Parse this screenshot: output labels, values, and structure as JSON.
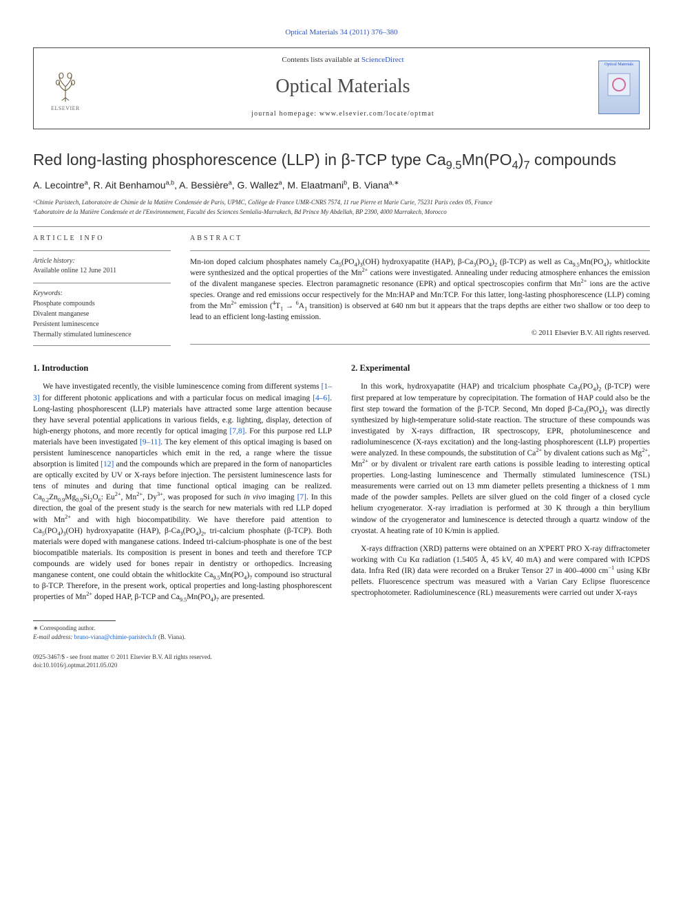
{
  "citation": "Optical Materials 34 (2011) 376–380",
  "header": {
    "contents_prefix": "Contents lists available at ",
    "contents_link": "ScienceDirect",
    "journal": "Optical Materials",
    "homepage_label": "journal homepage: www.elsevier.com/locate/optmat",
    "publisher_logo_text": "ELSEVIER",
    "cover_text": "Optical Materials"
  },
  "article": {
    "title_html": "Red long-lasting phosphorescence (LLP) in β-TCP type Ca<sub>9.5</sub>Mn(PO<sub>4</sub>)<sub>7</sub> compounds",
    "authors_html": "A. Lecointre<sup>a</sup>, R. Ait Benhamou<sup>a,b</sup>, A. Bessière<sup>a</sup>, G. Wallez<sup>a</sup>, M. Elaatmani<sup>b</sup>, B. Viana<sup>a,∗</sup>",
    "affiliations": [
      "ᵃChimie Paristech, Laboratoire de Chimie de la Matière Condensée de Paris, UPMC, Collège de France UMR-CNRS 7574, 11 rue Pierre et Marie Curie, 75231 Paris cedex 05, France",
      "ᵇLaboratoire de la Matière Condensée et de l'Environnement, Faculté des Sciences Semlalia-Marrakech, Bd Prince My Abdellah, BP 2390, 4000 Marrakech, Morocco"
    ]
  },
  "info": {
    "head": "ARTICLE INFO",
    "history_label": "Article history:",
    "history_text": "Available online 12 June 2011",
    "keywords_label": "Keywords:",
    "keywords": [
      "Phosphate compounds",
      "Divalent manganese",
      "Persistent luminescence",
      "Thermally stimulated luminescence"
    ]
  },
  "abstract": {
    "head": "ABSTRACT",
    "text_html": "Mn-ion doped calcium phosphates namely Ca<sub>5</sub>(PO<sub>4</sub>)<sub>3</sub>(OH) hydroxyapatite (HAP), β-Ca<sub>3</sub>(PO<sub>4</sub>)<sub>2</sub> (β-TCP) as well as Ca<sub>9.5</sub>Mn(PO<sub>4</sub>)<sub>7</sub> whitlockite were synthesized and the optical properties of the Mn<sup>2+</sup> cations were investigated. Annealing under reducing atmosphere enhances the emission of the divalent manganese species. Electron paramagnetic resonance (EPR) and optical spectroscopies confirm that Mn<sup>2+</sup> ions are the active species. Orange and red emissions occur respectively for the Mn:HAP and Mn:TCP. For this latter, long-lasting phosphorescence (LLP) coming from the Mn<sup>2+</sup> emission (<sup>4</sup>T<sub>1</sub> → <sup>6</sup>A<sub>1</sub> transition) is observed at 640 nm but it appears that the traps depths are either two shallow or too deep to lead to an efficient long-lasting emission.",
    "copyright": "© 2011 Elsevier B.V. All rights reserved."
  },
  "sections": {
    "intro_head": "1. Introduction",
    "intro_html": "We have investigated recently, the visible luminescence coming from different systems <span class=\"ref-link\">[1–3]</span> for different photonic applications and with a particular focus on medical imaging <span class=\"ref-link\">[4–6]</span>. Long-lasting phosphorescent (LLP) materials have attracted some large attention because they have several potential applications in various fields, e.g. lighting, display, detection of high-energy photons, and more recently for optical imaging <span class=\"ref-link\">[7,8]</span>. For this purpose red LLP materials have been investigated <span class=\"ref-link\">[9–11]</span>. The key element of this optical imaging is based on persistent luminescence nanoparticles which emit in the red, a range where the tissue absorption is limited <span class=\"ref-link\">[12]</span> and the compounds which are prepared in the form of nanoparticles are optically excited by UV or X-rays before injection. The persistent luminescence lasts for tens of minutes and during that time functional optical imaging can be realized. Ca<sub>0.2</sub>Zn<sub>0.9</sub>Mg<sub>0.9</sub>Si<sub>2</sub>O<sub>6</sub>: Eu<sup>2+</sup>, Mn<sup>2+</sup>, Dy<sup>3+</sup>, was proposed for such <i>in vivo</i> imaging <span class=\"ref-link\">[7]</span>. In this direction, the goal of the present study is the search for new materials with red LLP doped with Mn<sup>2+</sup> and with high biocompatibility. We have therefore paid attention to Ca<sub>5</sub>(PO<sub>4</sub>)<sub>3</sub>(OH) hydroxyapatite (HAP), β-Ca<sub>3</sub>(PO<sub>4</sub>)<sub>2</sub>, tri-calcium phosphate (β-TCP). Both materials were doped with manganese cations. Indeed tri-calcium-phosphate is one of the best biocompatible materials. Its composition is present in bones and teeth and therefore TCP compounds are widely used for bones repair in dentistry or orthopedics. Increasing manganese content, one could obtain the whitlockite Ca<sub>9.5</sub>Mn(PO<sub>4</sub>)<sub>7</sub> compound iso structural to β-TCP. Therefore, in the present work, optical properties and long-lasting phosphorescent properties of Mn<sup>2+</sup> doped HAP, β-TCP and Ca<sub>9.5</sub>Mn(PO<sub>4</sub>)<sub>7</sub> are presented.",
    "exp_head": "2. Experimental",
    "exp_p1_html": "In this work, hydroxyapatite (HAP) and tricalcium phosphate Ca<sub>3</sub>(PO<sub>4</sub>)<sub>2</sub> (β-TCP) were first prepared at low temperature by coprecipitation. The formation of HAP could also be the first step toward the formation of the β-TCP. Second, Mn doped β-Ca<sub>3</sub>(PO<sub>4</sub>)<sub>2</sub> was directly synthesized by high-temperature solid-state reaction. The structure of these compounds was investigated by X-rays diffraction, IR spectroscopy, EPR, photoluminescence and radioluminescence (X-rays excitation) and the long-lasting phosphorescent (LLP) properties were analyzed. In these compounds, the substitution of Ca<sup>2+</sup> by divalent cations such as Mg<sup>2+</sup>, Mn<sup>2+</sup> or by divalent or trivalent rare earth cations is possible leading to interesting optical properties. Long-lasting luminescence and Thermally stimulated luminescence (TSL) measurements were carried out on 13 mm diameter pellets presenting a thickness of 1 mm made of the powder samples. Pellets are silver glued on the cold finger of a closed cycle helium cryogenerator. X-ray irradiation is performed at 30 K through a thin beryllium window of the cryogenerator and luminescence is detected through a quartz window of the cryostat. A heating rate of 10 K/min is applied.",
    "exp_p2_html": "X-rays diffraction (XRD) patterns were obtained on an X'PERT PRO X-ray diffractometer working with Cu Kα radiation (1.5405 Å, 45 kV, 40 mA) and were compared with ICPDS data. Infra Red (IR) data were recorded on a Bruker Tensor 27 in 400–4000 cm<sup>−1</sup> using KBr pellets. Fluorescence spectrum was measured with a Varian Cary Eclipse fluorescence spectrophotometer. Radioluminescence (RL) measurements were carried out under X-rays"
  },
  "footnote": {
    "corr": "∗ Corresponding author.",
    "email_label": "E-mail address:",
    "email": "bruno-viana@chimie-paristech.fr",
    "email_suffix": "(B. Viana)."
  },
  "bottom": {
    "line1": "0925-3467/$ - see front matter © 2011 Elsevier B.V. All rights reserved.",
    "line2": "doi:10.1016/j.optmat.2011.05.020"
  },
  "colors": {
    "link": "#2952cc",
    "text": "#1a1a1a",
    "rule": "#888888",
    "elsevier_orange": "#e77a2f"
  }
}
